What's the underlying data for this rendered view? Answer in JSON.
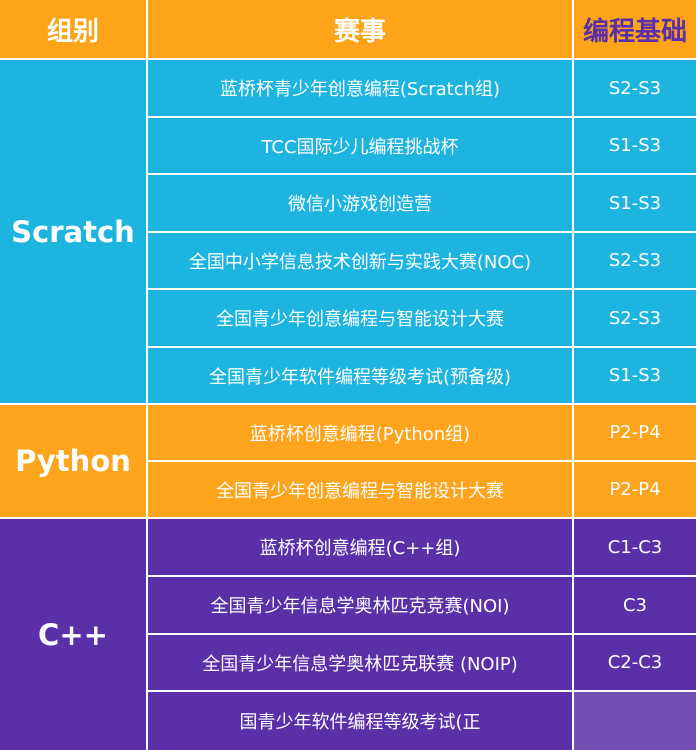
{
  "header": {
    "group": "组别",
    "event": "赛事",
    "level": "编程基础"
  },
  "groups": [
    {
      "name": "Scratch",
      "color": "#1eb4e0",
      "rows": [
        {
          "event": "蓝桥杯青少年创意编程(Scratch组)",
          "level": "S2-S3"
        },
        {
          "event": "TCC国际少儿编程挑战杯",
          "level": "S1-S3"
        },
        {
          "event": "微信小游戏创造营",
          "level": "S1-S3"
        },
        {
          "event": "全国中小学信息技术创新与实践大赛(NOC)",
          "level": "S2-S3"
        },
        {
          "event": "全国青少年创意编程与智能设计大赛",
          "level": "S2-S3"
        },
        {
          "event": "全国青少年软件编程等级考试(预备级)",
          "level": "S1-S3"
        }
      ]
    },
    {
      "name": "Python",
      "color": "#ffa41c",
      "rows": [
        {
          "event": "蓝桥杯创意编程(Python组)",
          "level": "P2-P4"
        },
        {
          "event": "全国青少年创意编程与智能设计大赛",
          "level": "P2-P4"
        }
      ]
    },
    {
      "name": "C++",
      "color": "#5a2fa8",
      "rows": [
        {
          "event": "蓝桥杯创意编程(C++组)",
          "level": "C1-C3"
        },
        {
          "event": "全国青少年信息学奥林匹克竞赛(NOI)",
          "level": "C3"
        },
        {
          "event": "全国青少年信息学奥林匹克联赛 (NOIP)",
          "level": "C2-C3"
        },
        {
          "event": "国青少年软件编程等级考试(正",
          "level": ""
        }
      ]
    }
  ]
}
